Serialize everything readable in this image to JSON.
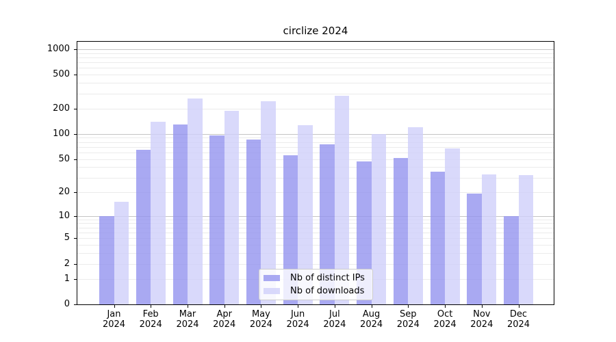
{
  "chart_data": {
    "type": "bar",
    "title": "circlize 2024",
    "categories": [
      "Jan 2024",
      "Feb 2024",
      "Mar 2024",
      "Apr 2024",
      "May 2024",
      "Jun 2024",
      "Jul 2024",
      "Aug 2024",
      "Sep 2024",
      "Oct 2024",
      "Nov 2024",
      "Dec 2024"
    ],
    "x_tick_line1": [
      "Jan",
      "Feb",
      "Mar",
      "Apr",
      "May",
      "Jun",
      "Jul",
      "Aug",
      "Sep",
      "Oct",
      "Nov",
      "Dec"
    ],
    "x_tick_line2": "2024",
    "series": [
      {
        "name": "Nb of distinct IPs",
        "color": "#9494ef",
        "fill": "rgba(148,148,239,0.8)",
        "values": [
          10,
          65,
          130,
          95,
          86,
          56,
          75,
          47,
          52,
          35,
          19,
          10
        ]
      },
      {
        "name": "Nb of downloads",
        "color": "#d0d0fa",
        "fill": "rgba(208,208,250,0.8)",
        "values": [
          15,
          140,
          260,
          187,
          243,
          128,
          280,
          100,
          121,
          67,
          33,
          32
        ]
      }
    ],
    "y_ticks": [
      0,
      1,
      2,
      5,
      10,
      20,
      50,
      100,
      200,
      500,
      1000
    ],
    "y_scale": "log1p",
    "ylim": [
      0,
      1254
    ],
    "grid": true,
    "grid_major_ticks": [
      10,
      100,
      1000
    ],
    "legend_position": "lower center",
    "colors": {
      "grid_minor": "#ebebeb",
      "grid_major": "#c4c4c4",
      "spine": "#000000",
      "legend_border": "#cccccc",
      "text": "#000000"
    }
  }
}
